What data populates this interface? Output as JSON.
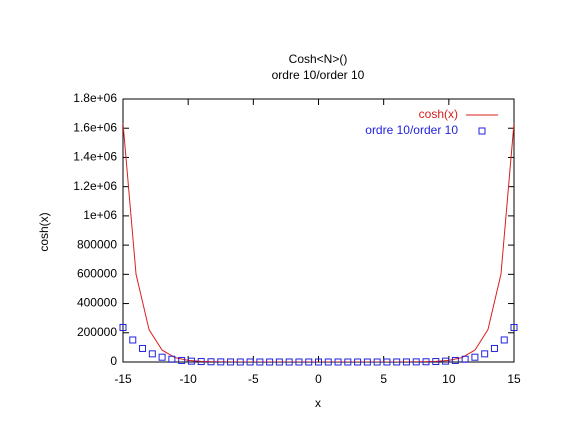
{
  "chart_data": {
    "type": "line",
    "title": "Cosh<N>()",
    "subtitle": "ordre 10/order 10",
    "x_label": "x",
    "y_label": "cosh(x)",
    "xlim": [
      -15,
      15
    ],
    "ylim": [
      0,
      1800000
    ],
    "xticks": [
      -15,
      -10,
      -5,
      0,
      5,
      10,
      15
    ],
    "yticks": [
      0,
      200000,
      400000,
      600000,
      800000,
      {
        "value": 1000000,
        "label": "1e+06"
      },
      {
        "value": 1200000,
        "label": "1.2e+06"
      },
      {
        "value": 1400000,
        "label": "1.4e+06"
      },
      {
        "value": 1600000,
        "label": "1.6e+06"
      },
      {
        "value": 1800000,
        "label": "1.8e+06"
      }
    ],
    "legend": "top-right",
    "series": [
      {
        "name": "cosh(x)",
        "color": "#d8201c",
        "style": "lines",
        "x": [
          -15,
          -14,
          -13,
          -12,
          -11,
          -10,
          -9,
          -8,
          -7,
          -6,
          -5,
          -4,
          -3,
          -2,
          -1,
          0,
          1,
          2,
          3,
          4,
          5,
          6,
          7,
          8,
          9,
          10,
          11,
          12,
          13,
          14,
          15
        ],
        "values": [
          1634509,
          601302,
          221206,
          81377,
          29937,
          11013,
          4052,
          1490,
          548,
          202,
          74,
          27,
          10,
          3.8,
          1.5,
          1,
          1.5,
          3.8,
          10,
          27,
          74,
          202,
          548,
          1490,
          4052,
          11013,
          29937,
          81377,
          221206,
          601302,
          1634509
        ]
      },
      {
        "name": "ordre 10/order 10",
        "color": "#2222dd",
        "style": "points",
        "x": [
          -15,
          -14.25,
          -13.5,
          -12.75,
          -12,
          -11.25,
          -10.5,
          -9.75,
          -9,
          -8.25,
          -7.5,
          -6.75,
          -6,
          -5.25,
          -4.5,
          -3.75,
          -3,
          -2.25,
          -1.5,
          -0.75,
          0,
          0.75,
          1.5,
          2.25,
          3,
          3.75,
          4.5,
          5.25,
          6,
          6.75,
          7.5,
          8.25,
          9,
          9.75,
          10.5,
          11.25,
          12,
          12.75,
          13.5,
          14.25,
          15
        ],
        "values": [
          236280,
          150761,
          92654,
          55757,
          32811,
          18860,
          10577,
          5783,
          3081,
          1600,
          811,
          402,
          196,
          93,
          44.8,
          21.3,
          10.07,
          4.8,
          2.35,
          1.29,
          1,
          1.29,
          2.35,
          4.8,
          10.07,
          21.3,
          44.8,
          93,
          196,
          402,
          811,
          1600,
          3081,
          5783,
          10577,
          18860,
          32811,
          55757,
          92654,
          150761,
          236280
        ]
      }
    ]
  }
}
